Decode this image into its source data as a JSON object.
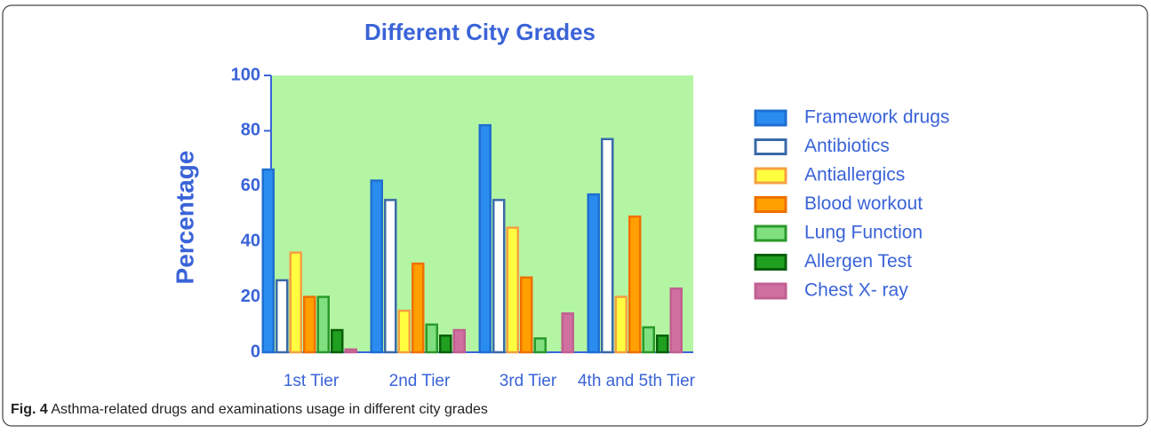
{
  "chart_data": {
    "type": "bar",
    "title": "Different City Grades",
    "ylabel": "Percentage",
    "categories": [
      "1st Tier",
      "2nd Tier",
      "3rd Tier",
      "4th and 5th Tier"
    ],
    "series": [
      {
        "name": "Framework drugs",
        "color": "#2b8cf0",
        "edgecolor": "#1f6fd0",
        "values": [
          66,
          62,
          82,
          57
        ]
      },
      {
        "name": "Antibiotics",
        "color": "#ffffff",
        "edgecolor": "#3a6aa8",
        "values": [
          26,
          55,
          55,
          77
        ]
      },
      {
        "name": "Antiallergics",
        "color": "#ffff40",
        "edgecolor": "#f5a040",
        "values": [
          36,
          15,
          45,
          20
        ]
      },
      {
        "name": "Blood workout",
        "color": "#ffa000",
        "edgecolor": "#f07000",
        "values": [
          20,
          32,
          27,
          49
        ]
      },
      {
        "name": "Lung Function",
        "color": "#80e080",
        "edgecolor": "#2a9a2a",
        "values": [
          20,
          10,
          5,
          9
        ]
      },
      {
        "name": "Allergen Test",
        "color": "#20a020",
        "edgecolor": "#0a600a",
        "values": [
          8,
          6,
          0,
          6
        ]
      },
      {
        "name": "Chest X- ray",
        "color": "#d070a0",
        "edgecolor": "#c06090",
        "values": [
          1,
          8,
          14,
          23
        ]
      }
    ],
    "ylim": [
      0,
      100
    ],
    "yticks": [
      0,
      20,
      40,
      60,
      80,
      100
    ],
    "plot_background": "#b4f5a4",
    "legend": "right",
    "caption": {
      "label": "Fig. 4",
      "text": "Asthma-related drugs and examinations usage in different city grades"
    }
  }
}
